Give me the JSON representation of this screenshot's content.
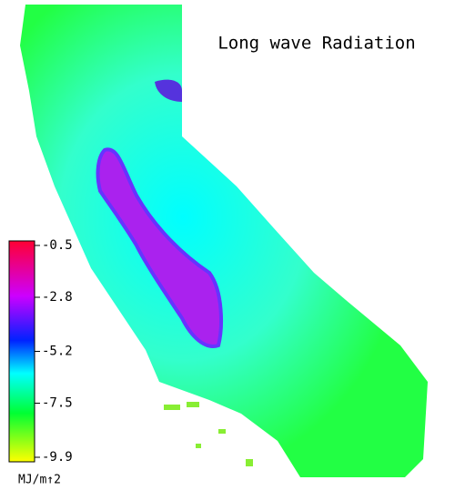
{
  "map": {
    "title": "Long wave Radiation",
    "colorbar": {
      "range": [
        -9.9,
        -0.5
      ],
      "ticks": [
        -0.5,
        -2.8,
        -5.2,
        -7.5,
        -9.9
      ],
      "unit": "MJ/m↑2"
    }
  }
}
